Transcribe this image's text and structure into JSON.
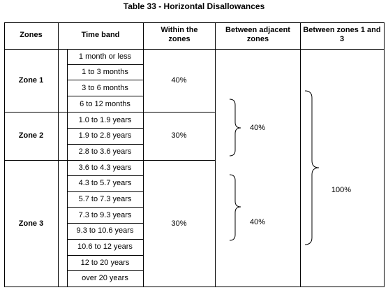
{
  "title": "Table 33 - Horizontal Disallowances",
  "headers": {
    "zones": "Zones",
    "time_band": "Time band",
    "within": "Within the zones",
    "adjacent": "Between adjacent zones",
    "z1z3": "Between zones 1 and 3"
  },
  "zones": [
    {
      "name": "Zone 1",
      "within": "40%",
      "bands": [
        "1 month or less",
        "1 to 3 months",
        "3 to 6 months",
        "6 to 12 months"
      ]
    },
    {
      "name": "Zone 2",
      "within": "30%",
      "bands": [
        "1.0 to 1.9 years",
        "1.9 to 2.8 years",
        "2.8 to 3.6 years"
      ]
    },
    {
      "name": "Zone 3",
      "within": "30%",
      "bands": [
        "3.6 to 4.3 years",
        "4.3 to 5.7 years",
        "5.7 to 7.3 years",
        "7.3 to 9.3 years",
        "9.3 to 10.6 years",
        "10.6 to 12 years",
        "12 to 20 years",
        "over 20 years"
      ]
    }
  ],
  "adjacent": {
    "zone1_zone2": "40%",
    "zone2_zone3": "40%"
  },
  "zone1_zone3": "100%"
}
